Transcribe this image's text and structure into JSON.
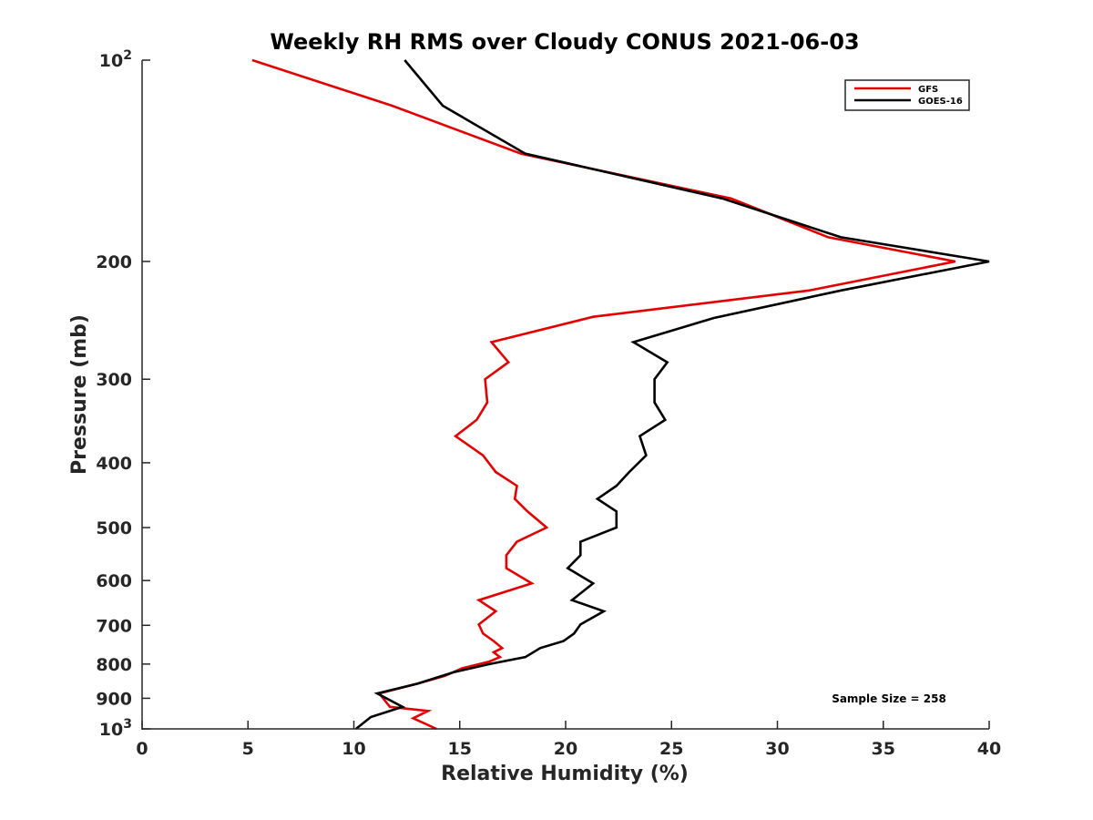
{
  "chart_data": {
    "type": "line",
    "title": "Weekly RH RMS over Cloudy CONUS 2021-06-03",
    "xlabel": "Relative Humidity (%)",
    "ylabel": "Pressure (mb)",
    "xlim": [
      0,
      40
    ],
    "ylim": [
      100,
      1000
    ],
    "y_scale": "log",
    "y_reversed": true,
    "grid": false,
    "legend_position": "top-right",
    "x_ticks": [
      "0",
      "5",
      "10",
      "15",
      "20",
      "25",
      "30",
      "35",
      "40"
    ],
    "y_ticks": [
      {
        "value": 100,
        "base": "10",
        "exp": "2"
      },
      {
        "value": 200,
        "label": "200"
      },
      {
        "value": 300,
        "label": "300"
      },
      {
        "value": 400,
        "label": "400"
      },
      {
        "value": 500,
        "label": "500"
      },
      {
        "value": 600,
        "label": "600"
      },
      {
        "value": 700,
        "label": "700"
      },
      {
        "value": 800,
        "label": "800"
      },
      {
        "value": 900,
        "label": "900"
      },
      {
        "value": 1000,
        "base": "10",
        "exp": "3"
      }
    ],
    "series": [
      {
        "name": "GFS",
        "color": "#e30000",
        "points": [
          [
            5.2,
            100
          ],
          [
            11.8,
            117
          ],
          [
            17.9,
            138
          ],
          [
            27.8,
            161
          ],
          [
            32.4,
            184
          ],
          [
            38.4,
            200
          ],
          [
            31.5,
            221
          ],
          [
            21.3,
            242
          ],
          [
            16.5,
            264
          ],
          [
            17.3,
            283
          ],
          [
            16.2,
            300
          ],
          [
            16.3,
            325
          ],
          [
            15.8,
            345
          ],
          [
            14.8,
            365
          ],
          [
            16.1,
            390
          ],
          [
            16.7,
            413
          ],
          [
            17.7,
            433
          ],
          [
            17.6,
            453
          ],
          [
            18.2,
            473
          ],
          [
            19.1,
            500
          ],
          [
            17.7,
            525
          ],
          [
            17.2,
            550
          ],
          [
            17.2,
            575
          ],
          [
            18.4,
            606
          ],
          [
            15.9,
            642
          ],
          [
            16.7,
            667
          ],
          [
            15.9,
            698
          ],
          [
            16.1,
            720
          ],
          [
            16.6,
            739
          ],
          [
            17.0,
            757
          ],
          [
            16.6,
            768
          ],
          [
            16.9,
            781
          ],
          [
            16.4,
            793
          ],
          [
            15.1,
            812
          ],
          [
            14.3,
            833
          ],
          [
            13.0,
            856
          ],
          [
            11.2,
            885
          ],
          [
            11.7,
            927
          ],
          [
            13.5,
            940
          ],
          [
            12.8,
            964
          ],
          [
            13.9,
            1000
          ]
        ]
      },
      {
        "name": "GOES-16",
        "color": "#000000",
        "points": [
          [
            12.4,
            100
          ],
          [
            14.2,
            117
          ],
          [
            18.1,
            138
          ],
          [
            27.4,
            161
          ],
          [
            33.0,
            184
          ],
          [
            40.0,
            200
          ],
          [
            33.0,
            221
          ],
          [
            27.0,
            243
          ],
          [
            23.2,
            264
          ],
          [
            24.8,
            283
          ],
          [
            24.2,
            300
          ],
          [
            24.2,
            325
          ],
          [
            24.7,
            345
          ],
          [
            23.5,
            365
          ],
          [
            23.8,
            390
          ],
          [
            23.0,
            413
          ],
          [
            22.4,
            433
          ],
          [
            21.5,
            453
          ],
          [
            22.4,
            473
          ],
          [
            22.4,
            500
          ],
          [
            20.7,
            525
          ],
          [
            20.7,
            550
          ],
          [
            20.1,
            575
          ],
          [
            21.3,
            606
          ],
          [
            20.3,
            642
          ],
          [
            21.8,
            667
          ],
          [
            20.7,
            698
          ],
          [
            20.4,
            720
          ],
          [
            19.9,
            739
          ],
          [
            18.8,
            757
          ],
          [
            18.1,
            781
          ],
          [
            16.4,
            800
          ],
          [
            14.7,
            823
          ],
          [
            13.0,
            856
          ],
          [
            11.1,
            885
          ],
          [
            12.3,
            927
          ],
          [
            10.8,
            960
          ],
          [
            10.1,
            1000
          ]
        ]
      }
    ],
    "annotations": [
      "Sample Size = 258"
    ]
  }
}
